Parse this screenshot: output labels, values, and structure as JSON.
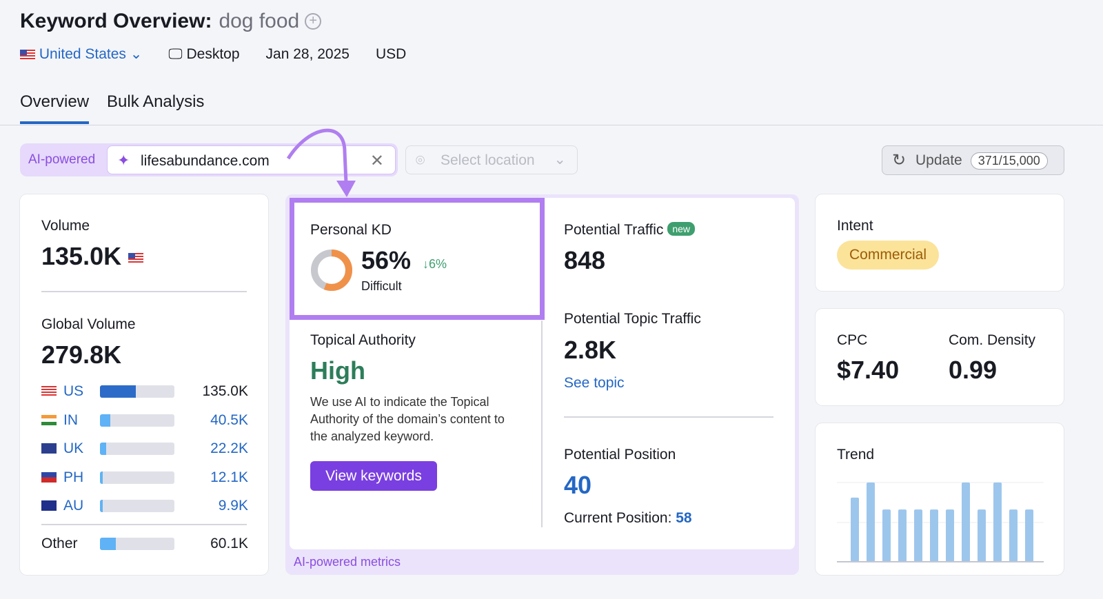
{
  "header": {
    "title": "Keyword Overview:",
    "keyword": "dog food",
    "country": "United States",
    "device": "Desktop",
    "date": "Jan 28, 2025",
    "currency": "USD"
  },
  "tabs": [
    {
      "label": "Overview",
      "active": true
    },
    {
      "label": "Bulk Analysis",
      "active": false
    }
  ],
  "ai_bar": {
    "label": "AI-powered",
    "domain": "lifesabundance.com",
    "location_placeholder": "Select location"
  },
  "update": {
    "label": "Update",
    "credits": "371/15,000"
  },
  "volume": {
    "label": "Volume",
    "value": "135.0K",
    "global_label": "Global Volume",
    "global_value": "279.8K",
    "countries": [
      {
        "code": "US",
        "value": "135.0K",
        "share": 0.48
      },
      {
        "code": "IN",
        "value": "40.5K",
        "share": 0.14
      },
      {
        "code": "UK",
        "value": "22.2K",
        "share": 0.08
      },
      {
        "code": "PH",
        "value": "12.1K",
        "share": 0.04
      },
      {
        "code": "AU",
        "value": "9.9K",
        "share": 0.04
      }
    ],
    "other": {
      "label": "Other",
      "value": "60.1K",
      "share": 0.21
    }
  },
  "kd": {
    "label": "Personal KD",
    "value": "56%",
    "change": "↓6%",
    "level": "Difficult",
    "percent": 56,
    "color": "#f0914a"
  },
  "topical": {
    "label": "Topical Authority",
    "value": "High",
    "desc": "We use AI to indicate the Topical Authority of the domain’s content to the analyzed keyword.",
    "button": "View keywords"
  },
  "traffic": {
    "label": "Potential Traffic",
    "badge": "new",
    "value": "848",
    "topic_label": "Potential Topic Traffic",
    "topic_value": "2.8K",
    "see_topic": "See topic"
  },
  "position": {
    "label": "Potential Position",
    "value": "40",
    "current_label": "Current Position:",
    "current_value": "58"
  },
  "ai_footer": "AI-powered metrics",
  "intent": {
    "label": "Intent",
    "value": "Commercial"
  },
  "cpc": {
    "label": "CPC",
    "value": "$7.40",
    "density_label": "Com. Density",
    "density_value": "0.99"
  },
  "trend": {
    "label": "Trend",
    "values": [
      0.81,
      1,
      0.66,
      0.66,
      0.66,
      0.66,
      0.66,
      1,
      0.66,
      1,
      0.66,
      0.66
    ]
  }
}
